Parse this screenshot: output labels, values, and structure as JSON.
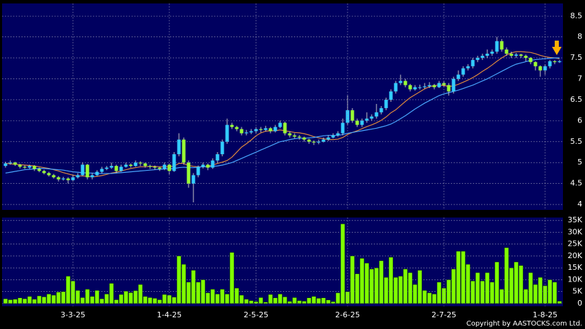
{
  "chart_data": [
    {
      "type": "candlestick",
      "open": [
        4.92,
        4.98,
        5.0,
        4.95,
        4.9,
        4.88,
        4.92,
        4.85,
        4.8,
        4.75,
        4.7,
        4.65,
        4.6,
        4.62,
        4.58,
        4.65,
        4.7,
        4.95,
        4.65,
        4.7,
        4.78,
        4.85,
        4.88,
        4.92,
        4.8,
        4.9,
        4.95,
        4.92,
        5.0,
        4.98,
        4.92,
        4.9,
        4.88,
        4.85,
        4.95,
        4.8,
        5.2,
        5.55,
        5.0,
        4.5,
        4.7,
        4.9,
        4.95,
        4.88,
        5.05,
        5.2,
        5.5,
        5.9,
        5.85,
        5.8,
        5.7,
        5.72,
        5.75,
        5.8,
        5.78,
        5.82,
        5.75,
        5.85,
        5.95,
        5.7,
        5.65,
        5.62,
        5.6,
        5.55,
        5.5,
        5.48,
        5.5,
        5.55,
        5.6,
        5.65,
        5.7,
        5.95,
        6.25,
        6.0,
        5.9,
        6.0,
        6.05,
        6.1,
        6.2,
        6.3,
        6.5,
        6.7,
        6.9,
        6.95,
        6.85,
        6.75,
        6.8,
        6.8,
        6.82,
        6.85,
        6.8,
        6.9,
        6.85,
        6.7,
        7.0,
        7.1,
        7.25,
        7.3,
        7.45,
        7.5,
        7.55,
        7.6,
        7.65,
        7.9,
        7.7,
        7.6,
        7.55,
        7.58,
        7.55,
        7.5,
        7.4,
        7.3,
        7.2,
        7.3,
        7.42,
        7.4
      ],
      "high": [
        5.02,
        5.05,
        5.02,
        4.97,
        4.93,
        4.95,
        4.94,
        4.88,
        4.83,
        4.78,
        4.73,
        4.68,
        4.66,
        4.65,
        4.7,
        4.75,
        5.0,
        4.97,
        4.75,
        4.82,
        4.9,
        4.92,
        5.0,
        4.95,
        4.95,
        5.0,
        4.98,
        5.05,
        5.03,
        5.0,
        4.95,
        4.93,
        4.9,
        5.0,
        4.98,
        5.25,
        5.7,
        5.6,
        5.05,
        4.75,
        4.93,
        5.0,
        4.98,
        5.1,
        5.25,
        5.55,
        6.05,
        5.95,
        5.88,
        5.85,
        5.78,
        5.8,
        5.85,
        5.85,
        5.88,
        5.85,
        5.9,
        6.0,
        5.98,
        5.75,
        5.7,
        5.66,
        5.62,
        5.57,
        5.53,
        5.55,
        5.6,
        5.65,
        5.7,
        5.75,
        6.05,
        6.6,
        6.3,
        6.05,
        6.05,
        6.2,
        6.15,
        6.4,
        6.35,
        6.55,
        6.75,
        6.95,
        7.1,
        7.0,
        6.88,
        6.85,
        6.86,
        6.9,
        6.92,
        6.88,
        6.95,
        6.95,
        6.9,
        7.05,
        7.2,
        7.3,
        7.35,
        7.5,
        7.55,
        7.6,
        7.7,
        7.7,
        8.0,
        7.95,
        7.75,
        7.65,
        7.62,
        7.6,
        7.58,
        7.52,
        7.42,
        7.32,
        7.35,
        7.45,
        7.45,
        7.45
      ],
      "low": [
        4.88,
        4.95,
        4.92,
        4.86,
        4.85,
        4.85,
        4.8,
        4.77,
        4.72,
        4.67,
        4.62,
        4.55,
        4.57,
        4.5,
        4.55,
        4.62,
        4.68,
        4.6,
        4.6,
        4.68,
        4.75,
        4.82,
        4.85,
        4.75,
        4.78,
        4.88,
        4.88,
        4.9,
        4.92,
        4.88,
        4.85,
        4.83,
        4.8,
        4.82,
        4.72,
        4.78,
        5.15,
        4.95,
        4.4,
        4.05,
        4.65,
        4.86,
        4.82,
        4.85,
        5.0,
        5.15,
        5.45,
        5.8,
        5.75,
        5.65,
        5.65,
        5.68,
        5.7,
        5.72,
        5.74,
        5.7,
        5.72,
        5.82,
        5.65,
        5.6,
        5.58,
        5.55,
        5.5,
        5.45,
        5.42,
        5.44,
        5.48,
        5.52,
        5.58,
        5.62,
        5.65,
        5.9,
        5.95,
        5.85,
        5.85,
        5.95,
        6.0,
        6.05,
        6.15,
        6.25,
        6.45,
        6.65,
        6.85,
        6.8,
        6.7,
        6.72,
        6.75,
        6.76,
        6.78,
        6.75,
        6.78,
        6.8,
        6.6,
        6.65,
        6.95,
        7.05,
        7.2,
        7.25,
        7.4,
        7.45,
        7.5,
        7.55,
        7.6,
        7.65,
        7.55,
        7.5,
        7.5,
        7.5,
        7.42,
        7.35,
        7.2,
        7.05,
        7.1,
        7.25,
        7.35,
        7.38
      ],
      "close": [
        4.98,
        5.0,
        4.95,
        4.9,
        4.88,
        4.92,
        4.85,
        4.8,
        4.75,
        4.7,
        4.65,
        4.6,
        4.62,
        4.58,
        4.65,
        4.7,
        4.95,
        4.65,
        4.7,
        4.78,
        4.85,
        4.88,
        4.92,
        4.8,
        4.9,
        4.95,
        4.92,
        5.0,
        4.98,
        4.92,
        4.9,
        4.88,
        4.85,
        4.95,
        4.8,
        5.2,
        5.55,
        5.0,
        4.5,
        4.7,
        4.9,
        4.95,
        4.88,
        5.05,
        5.2,
        5.5,
        5.9,
        5.85,
        5.8,
        5.7,
        5.72,
        5.75,
        5.8,
        5.78,
        5.82,
        5.75,
        5.85,
        5.95,
        5.7,
        5.65,
        5.62,
        5.6,
        5.55,
        5.5,
        5.48,
        5.5,
        5.55,
        5.6,
        5.65,
        5.7,
        5.95,
        6.25,
        6.0,
        5.9,
        6.0,
        6.05,
        6.1,
        6.2,
        6.3,
        6.5,
        6.7,
        6.9,
        6.95,
        6.85,
        6.75,
        6.8,
        6.8,
        6.82,
        6.85,
        6.8,
        6.9,
        6.85,
        6.7,
        7.0,
        7.1,
        7.25,
        7.3,
        7.45,
        7.5,
        7.55,
        7.6,
        7.65,
        7.9,
        7.7,
        7.6,
        7.55,
        7.58,
        7.55,
        7.5,
        7.4,
        7.3,
        7.2,
        7.3,
        7.42,
        7.4,
        7.42
      ],
      "up_color": "#33ccff",
      "down_color": "#99ff33",
      "lines": [
        {
          "color": "#e08a3c",
          "values": [
            4.98,
            4.97,
            4.96,
            4.95,
            4.94,
            4.93,
            4.92,
            4.9,
            4.88,
            4.86,
            4.83,
            4.8,
            4.76,
            4.73,
            4.7,
            4.68,
            4.68,
            4.67,
            4.66,
            4.67,
            4.69,
            4.72,
            4.75,
            4.77,
            4.8,
            4.83,
            4.86,
            4.88,
            4.9,
            4.9,
            4.91,
            4.91,
            4.9,
            4.9,
            4.9,
            4.92,
            4.98,
            4.98,
            4.93,
            4.91,
            4.9,
            4.9,
            4.91,
            4.94,
            4.98,
            5.01,
            5.05,
            5.13,
            5.25,
            5.37,
            5.45,
            5.54,
            5.64,
            5.71,
            5.75,
            5.76,
            5.76,
            5.78,
            5.76,
            5.74,
            5.72,
            5.71,
            5.69,
            5.66,
            5.62,
            5.59,
            5.57,
            5.55,
            5.55,
            5.56,
            5.6,
            5.67,
            5.72,
            5.76,
            5.81,
            5.86,
            5.9,
            5.95,
            6.01,
            6.09,
            6.19,
            6.26,
            6.36,
            6.46,
            6.55,
            6.62,
            6.69,
            6.76,
            6.81,
            6.84,
            6.85,
            6.84,
            6.82,
            6.83,
            6.87,
            6.92,
            6.97,
            7.03,
            7.1,
            7.18,
            7.25,
            7.33,
            7.42,
            7.5,
            7.57,
            7.62,
            7.65,
            7.65,
            7.64,
            7.63,
            7.6,
            7.56,
            7.53,
            7.51,
            7.5,
            7.48
          ]
        },
        {
          "color": "#4aa8ff",
          "values": [
            4.75,
            4.77,
            4.79,
            4.81,
            4.83,
            4.84,
            4.85,
            4.86,
            4.86,
            4.85,
            4.84,
            4.83,
            4.82,
            4.8,
            4.78,
            4.77,
            4.76,
            4.75,
            4.75,
            4.74,
            4.74,
            4.74,
            4.74,
            4.75,
            4.76,
            4.77,
            4.78,
            4.79,
            4.8,
            4.81,
            4.82,
            4.83,
            4.84,
            4.85,
            4.85,
            4.86,
            4.88,
            4.89,
            4.88,
            4.88,
            4.89,
            4.9,
            4.9,
            4.91,
            4.92,
            4.94,
            4.97,
            5.0,
            5.05,
            5.1,
            5.15,
            5.2,
            5.25,
            5.3,
            5.35,
            5.4,
            5.45,
            5.5,
            5.52,
            5.55,
            5.57,
            5.58,
            5.58,
            5.59,
            5.6,
            5.62,
            5.64,
            5.65,
            5.65,
            5.65,
            5.67,
            5.7,
            5.72,
            5.74,
            5.76,
            5.78,
            5.8,
            5.82,
            5.85,
            5.88,
            5.92,
            5.98,
            6.05,
            6.12,
            6.2,
            6.28,
            6.35,
            6.42,
            6.48,
            6.54,
            6.6,
            6.64,
            6.67,
            6.7,
            6.73,
            6.77,
            6.81,
            6.85,
            6.9,
            6.95,
            7.0,
            7.06,
            7.12,
            7.18,
            7.24,
            7.3,
            7.35,
            7.38,
            7.41,
            7.44,
            7.46,
            7.47,
            7.48,
            7.49,
            7.5,
            7.5
          ]
        }
      ],
      "ylim": [
        3.87,
        8.8
      ],
      "yticks": [
        4,
        4.5,
        5,
        5.5,
        6,
        6.5,
        7,
        7.5,
        8,
        8.5
      ],
      "grid": true
    },
    {
      "type": "bar",
      "categories": [
        null,
        null,
        null,
        null,
        null,
        null,
        null,
        null,
        null,
        null,
        null,
        null,
        null,
        null,
        "3-3-25",
        null,
        null,
        null,
        null,
        null,
        null,
        null,
        null,
        null,
        null,
        null,
        null,
        null,
        null,
        null,
        null,
        null,
        null,
        null,
        "1-4-25",
        null,
        null,
        null,
        null,
        null,
        null,
        null,
        null,
        null,
        null,
        null,
        null,
        null,
        null,
        null,
        null,
        null,
        "2-5-25",
        null,
        null,
        null,
        null,
        null,
        null,
        null,
        null,
        null,
        null,
        null,
        null,
        null,
        null,
        null,
        null,
        null,
        null,
        "2-6-25",
        null,
        null,
        null,
        null,
        null,
        null,
        null,
        null,
        null,
        null,
        null,
        null,
        null,
        null,
        null,
        null,
        null,
        null,
        null,
        "2-7-25",
        null,
        null,
        null,
        null,
        null,
        null,
        null,
        null,
        null,
        null,
        null,
        null,
        null,
        null,
        null,
        null,
        null,
        null,
        null,
        null,
        "1-8-25",
        null,
        null,
        null
      ],
      "values": [
        2000,
        1600,
        1800,
        2400,
        2000,
        3000,
        1800,
        3200,
        2800,
        4000,
        3500,
        4800,
        5000,
        11500,
        9500,
        5500,
        2500,
        6000,
        3000,
        5500,
        2000,
        4000,
        8500,
        1600,
        3800,
        5200,
        4600,
        5400,
        8000,
        3000,
        2500,
        2200,
        1600,
        3800,
        3500,
        2700,
        20000,
        16500,
        9000,
        14000,
        9000,
        10000,
        4500,
        6000,
        4000,
        6000,
        4000,
        21500,
        6500,
        3500,
        1800,
        1200,
        800,
        2500,
        600,
        3800,
        2400,
        4000,
        2800,
        900,
        2500,
        1200,
        1000,
        2400,
        3000,
        2200,
        2400,
        1500,
        800,
        4500,
        33500,
        5000,
        20000,
        12500,
        19000,
        17000,
        14500,
        15000,
        18000,
        11000,
        19500,
        11000,
        11500,
        14500,
        13000,
        8000,
        14000,
        5500,
        4500,
        4000,
        9000,
        6500,
        10000,
        14500,
        22000,
        22000,
        16500,
        9500,
        13000,
        9500,
        13000,
        9000,
        17500,
        6000,
        23500,
        15000,
        17500,
        16000,
        6000,
        13000,
        8000,
        11000,
        7500,
        10000,
        9000,
        1000
      ],
      "color": "#80ff00",
      "ylim": [
        -1160,
        36200
      ],
      "yticks": [
        0,
        {
          "value": 5000,
          "label": "5K"
        },
        {
          "value": 10000,
          "label": "10K"
        },
        {
          "value": 15000,
          "label": "15K"
        },
        {
          "value": 20000,
          "label": "20K"
        },
        {
          "value": 25000,
          "label": "25K"
        },
        {
          "value": 30000,
          "label": "30K"
        },
        {
          "value": 35000,
          "label": "35K"
        }
      ],
      "grid": true
    }
  ],
  "footer": "Copyright by AASTOCKS.com Ltd."
}
